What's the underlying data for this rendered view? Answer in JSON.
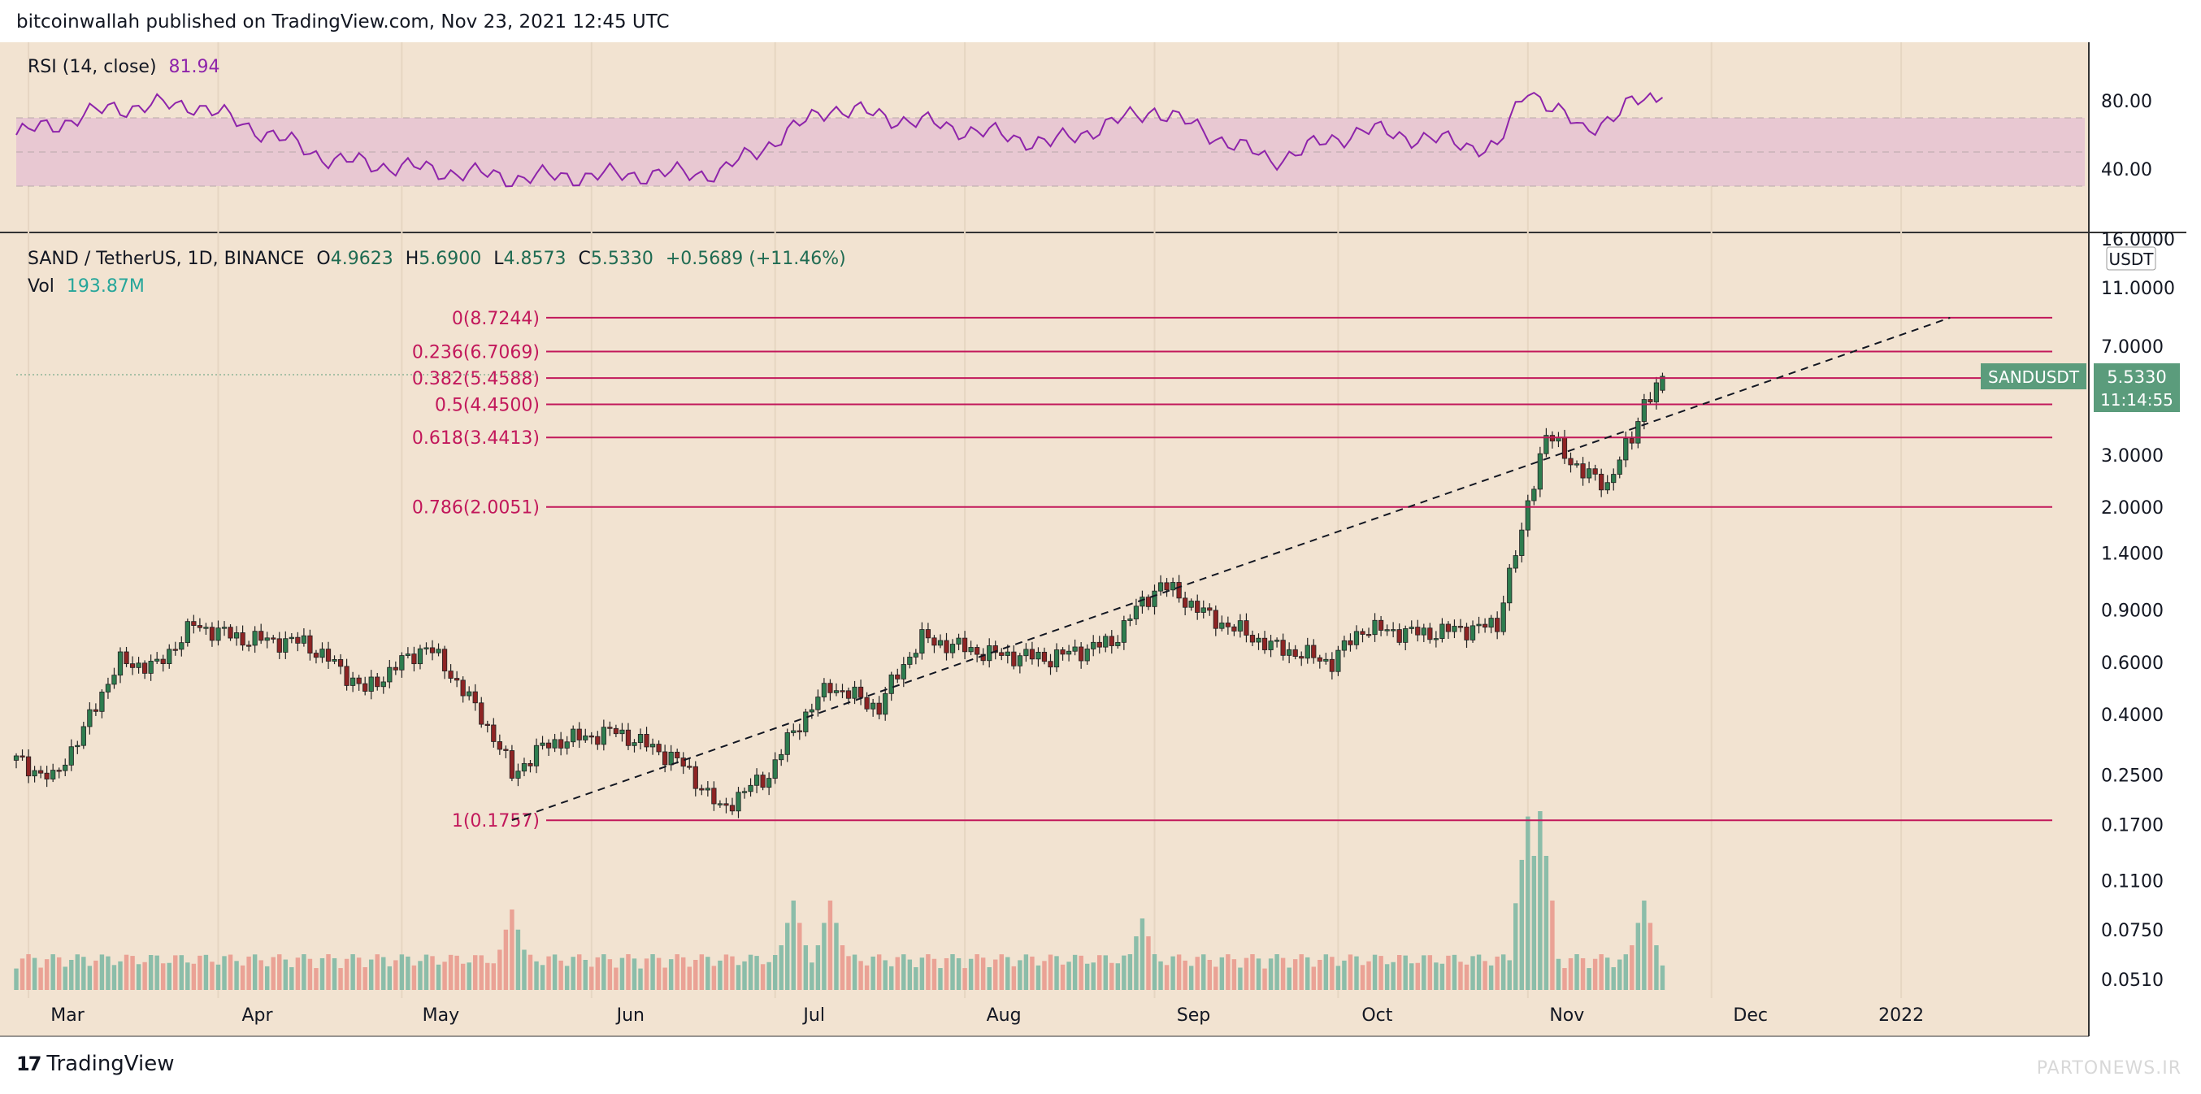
{
  "header": {
    "published_text": "bitcoinwallah published on TradingView.com, Nov 23, 2021 12:45 UTC"
  },
  "branding": {
    "logo_label": "TradingView",
    "watermark": "PARTONEWS.IR"
  },
  "colors": {
    "background": "#f2e3d1",
    "up": "#26a69a",
    "down": "#ef5350",
    "rsi_line": "#8e24aa",
    "fib_line": "#c2185b",
    "trendline": "#131722",
    "price_label_bg": "#5b9c7c"
  },
  "rsi_panel": {
    "legend_name": "RSI (14, close)",
    "legend_value": "81.94",
    "axis_ticks": [
      "80.00",
      "40.00"
    ]
  },
  "main_panel": {
    "symbol": "SAND / TetherUS, 1D, BINANCE",
    "open_label": "O",
    "open_value": "4.9623",
    "high_label": "H",
    "high_value": "5.6900",
    "low_label": "L",
    "low_value": "4.8573",
    "close_label": "C",
    "close_value": "5.5330",
    "change_value": "+0.5689 (+11.46%)",
    "vol_label": "Vol",
    "vol_value": "193.87M",
    "currency": "USDT",
    "price_ticks": [
      "16.0000",
      "11.0000",
      "7.0000",
      "3.0000",
      "2.0000",
      "1.4000",
      "0.9000",
      "0.6000",
      "0.4000",
      "0.2500",
      "0.1700",
      "0.1100",
      "0.0750",
      "0.0510"
    ],
    "last_price_tag": {
      "symbol": "SANDUSDT",
      "price": "5.5330",
      "countdown": "11:14:55"
    }
  },
  "time_axis": [
    "Mar",
    "Apr",
    "May",
    "Jun",
    "Jul",
    "Aug",
    "Sep",
    "Oct",
    "Nov",
    "Dec",
    "2022"
  ],
  "chart_data": {
    "type": "candlestick",
    "scale": "log",
    "x_range": [
      "2021-02-27",
      "2022-01-31"
    ],
    "y_range": [
      0.047,
      16.5
    ],
    "fib_levels": [
      {
        "label": "0(8.7244)",
        "value": 8.7244
      },
      {
        "label": "0.236(6.7069)",
        "value": 6.7069
      },
      {
        "label": "0.382(5.4588)",
        "value": 5.4588
      },
      {
        "label": "0.5(4.4500)",
        "value": 4.45
      },
      {
        "label": "0.618(3.4413)",
        "value": 3.4413
      },
      {
        "label": "0.786(2.0051)",
        "value": 2.0051
      },
      {
        "label": "1(0.1757)",
        "value": 0.1757
      }
    ],
    "trendline": {
      "from": {
        "date": "2021-05-19",
        "price": 0.1757
      },
      "to": {
        "date": "2022-01-09",
        "price": 8.7244
      }
    },
    "price_path": [
      {
        "date": "2021-02-27",
        "close": 0.28
      },
      {
        "date": "2021-03-05",
        "close": 0.24
      },
      {
        "date": "2021-03-10",
        "close": 0.35
      },
      {
        "date": "2021-03-16",
        "close": 0.6
      },
      {
        "date": "2021-03-22",
        "close": 0.58
      },
      {
        "date": "2021-03-28",
        "close": 0.8
      },
      {
        "date": "2021-04-05",
        "close": 0.72
      },
      {
        "date": "2021-04-15",
        "close": 0.7
      },
      {
        "date": "2021-04-25",
        "close": 0.48
      },
      {
        "date": "2021-05-05",
        "close": 0.68
      },
      {
        "date": "2021-05-12",
        "close": 0.45
      },
      {
        "date": "2021-05-19",
        "close": 0.25
      },
      {
        "date": "2021-05-25",
        "close": 0.32
      },
      {
        "date": "2021-06-05",
        "close": 0.35
      },
      {
        "date": "2021-06-15",
        "close": 0.28
      },
      {
        "date": "2021-06-22",
        "close": 0.19
      },
      {
        "date": "2021-06-30",
        "close": 0.25
      },
      {
        "date": "2021-07-10",
        "close": 0.5
      },
      {
        "date": "2021-07-18",
        "close": 0.42
      },
      {
        "date": "2021-07-25",
        "close": 0.72
      },
      {
        "date": "2021-08-05",
        "close": 0.64
      },
      {
        "date": "2021-08-15",
        "close": 0.62
      },
      {
        "date": "2021-08-25",
        "close": 0.7
      },
      {
        "date": "2021-09-02",
        "close": 1.1
      },
      {
        "date": "2021-09-10",
        "close": 0.85
      },
      {
        "date": "2021-09-20",
        "close": 0.68
      },
      {
        "date": "2021-09-30",
        "close": 0.6
      },
      {
        "date": "2021-10-05",
        "close": 0.78
      },
      {
        "date": "2021-10-15",
        "close": 0.75
      },
      {
        "date": "2021-10-27",
        "close": 0.8
      },
      {
        "date": "2021-10-31",
        "close": 1.6
      },
      {
        "date": "2021-11-02",
        "close": 2.5
      },
      {
        "date": "2021-11-04",
        "close": 3.5
      },
      {
        "date": "2021-11-10",
        "close": 2.6
      },
      {
        "date": "2021-11-14",
        "close": 2.4
      },
      {
        "date": "2021-11-18",
        "close": 3.4
      },
      {
        "date": "2021-11-20",
        "close": 4.6
      },
      {
        "date": "2021-11-22",
        "close": 4.96
      },
      {
        "date": "2021-11-23",
        "close": 5.533
      }
    ],
    "volume_spikes": [
      {
        "date": "2021-05-19",
        "relative": 0.45
      },
      {
        "date": "2021-07-04",
        "relative": 0.5
      },
      {
        "date": "2021-07-10",
        "relative": 0.5
      },
      {
        "date": "2021-08-30",
        "relative": 0.4
      },
      {
        "date": "2021-11-01",
        "relative": 0.97
      },
      {
        "date": "2021-11-03",
        "relative": 1.0
      },
      {
        "date": "2021-11-20",
        "relative": 0.5
      }
    ],
    "rsi_path": [
      {
        "date": "2021-02-27",
        "value": 60
      },
      {
        "date": "2021-03-15",
        "value": 76
      },
      {
        "date": "2021-03-28",
        "value": 78
      },
      {
        "date": "2021-04-20",
        "value": 45
      },
      {
        "date": "2021-05-19",
        "value": 35
      },
      {
        "date": "2021-06-22",
        "value": 38
      },
      {
        "date": "2021-07-10",
        "value": 76
      },
      {
        "date": "2021-08-15",
        "value": 55
      },
      {
        "date": "2021-09-01",
        "value": 75
      },
      {
        "date": "2021-09-20",
        "value": 45
      },
      {
        "date": "2021-10-05",
        "value": 63
      },
      {
        "date": "2021-10-27",
        "value": 52
      },
      {
        "date": "2021-11-01",
        "value": 88
      },
      {
        "date": "2021-11-10",
        "value": 62
      },
      {
        "date": "2021-11-18",
        "value": 78
      },
      {
        "date": "2021-11-23",
        "value": 81.94
      }
    ]
  }
}
